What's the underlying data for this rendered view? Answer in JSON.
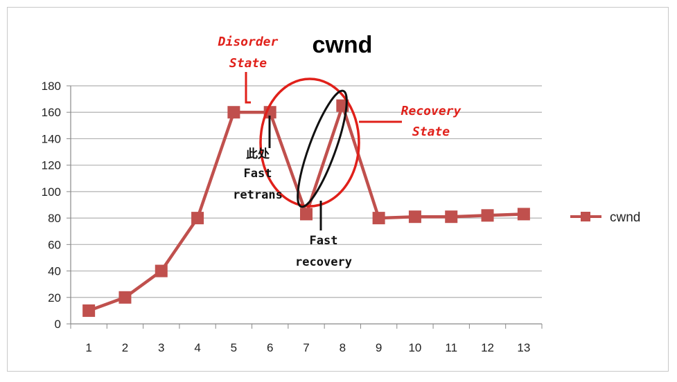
{
  "chart_data": {
    "type": "line",
    "title": "cwnd",
    "categories": [
      "1",
      "2",
      "3",
      "4",
      "5",
      "6",
      "7",
      "8",
      "9",
      "10",
      "11",
      "12",
      "13"
    ],
    "series": [
      {
        "name": "cwnd",
        "values": [
          10,
          20,
          40,
          80,
          160,
          160,
          83,
          165,
          80,
          81,
          81,
          82,
          83
        ]
      }
    ],
    "ylim": [
      0,
      180
    ],
    "yticks": [
      "0",
      "20",
      "40",
      "60",
      "80",
      "100",
      "120",
      "140",
      "160",
      "180"
    ],
    "grid": true,
    "legend": "right",
    "annotations": {
      "disorder_line1": "Disorder",
      "disorder_line2": "State",
      "recovery_line1": "Recovery",
      "recovery_line2": "State",
      "here_cn": "此处",
      "fast_retrans_1": "Fast",
      "fast_retrans_2": "retrans",
      "fast_recovery_1": "Fast",
      "fast_recovery_2": "recovery"
    },
    "colors": {
      "series": "#c0504d",
      "annotation_red": "#e0201a",
      "grid": "#b0b0b0"
    }
  }
}
